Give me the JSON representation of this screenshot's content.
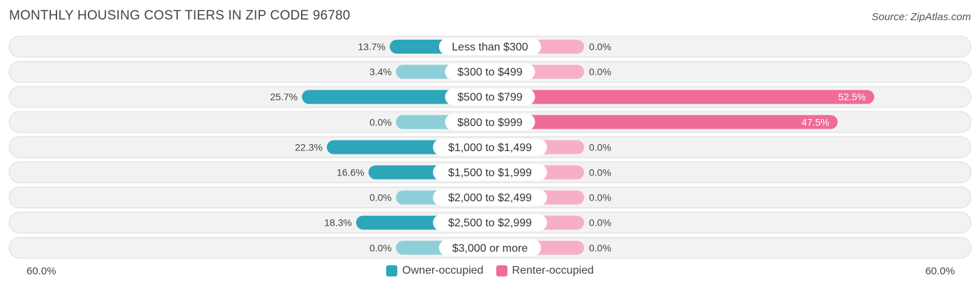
{
  "header": {
    "title": "MONTHLY HOUSING COST TIERS IN ZIP CODE 96780",
    "source": "Source: ZipAtlas.com"
  },
  "axis": {
    "left_label": "60.0%",
    "right_label": "60.0%"
  },
  "legend": {
    "owner_label": "Owner-occupied",
    "renter_label": "Renter-occupied"
  },
  "colors": {
    "owner_strong": "#2ca6b8",
    "owner_light": "#8ccfd9",
    "renter_strong": "#f06b96",
    "renter_light": "#f7afc7",
    "row_bg": "#f2f2f2",
    "row_border": "#dcdcdc"
  },
  "chart_data": {
    "type": "bar",
    "orientation": "horizontal-diverging",
    "title": "MONTHLY HOUSING COST TIERS IN ZIP CODE 96780",
    "xlim": [
      -60,
      60
    ],
    "categories": [
      "Less than $300",
      "$300 to $499",
      "$500 to $799",
      "$800 to $999",
      "$1,000 to $1,499",
      "$1,500 to $1,999",
      "$2,000 to $2,499",
      "$2,500 to $2,999",
      "$3,000 or more"
    ],
    "series": [
      {
        "name": "Owner-occupied",
        "values": [
          13.7,
          3.4,
          25.7,
          0.0,
          22.3,
          16.6,
          0.0,
          18.3,
          0.0
        ],
        "labels": [
          "13.7%",
          "3.4%",
          "25.7%",
          "0.0%",
          "22.3%",
          "16.6%",
          "0.0%",
          "18.3%",
          "0.0%"
        ]
      },
      {
        "name": "Renter-occupied",
        "values": [
          0.0,
          0.0,
          52.5,
          47.5,
          0.0,
          0.0,
          0.0,
          0.0,
          0.0
        ],
        "labels": [
          "0.0%",
          "0.0%",
          "52.5%",
          "47.5%",
          "0.0%",
          "0.0%",
          "0.0%",
          "0.0%",
          "0.0%"
        ]
      }
    ],
    "legend_position": "bottom-center",
    "grid": false
  }
}
